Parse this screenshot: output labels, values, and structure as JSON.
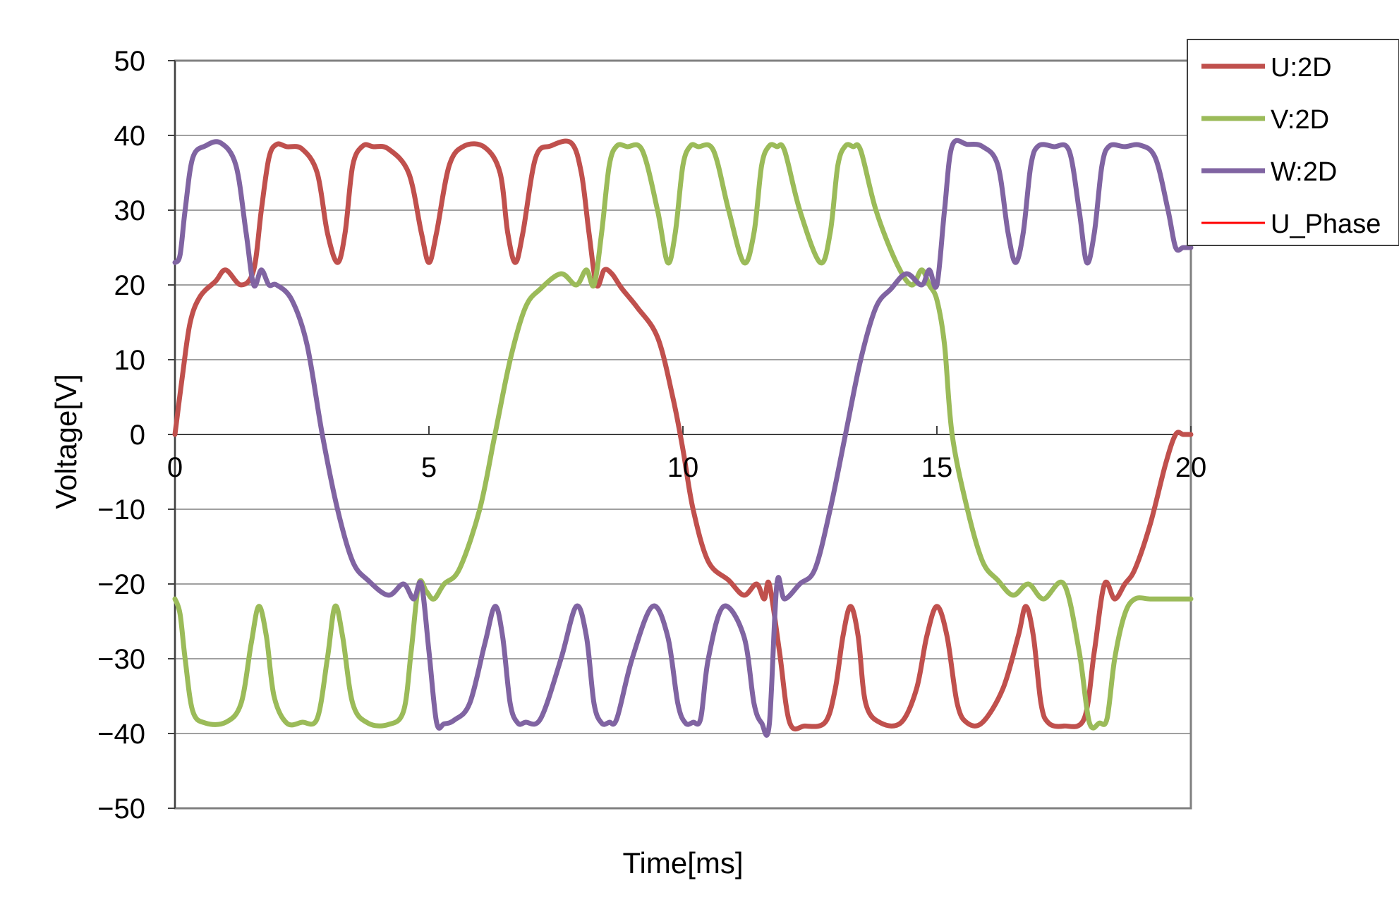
{
  "chart_data": {
    "type": "line",
    "title": "",
    "xlabel": "Time[ms]",
    "ylabel": "Voltage[V]",
    "xlim": [
      0,
      20
    ],
    "ylim": [
      -50,
      50
    ],
    "x_ticks": [
      0,
      5,
      10,
      15,
      20
    ],
    "x_tick_labels": [
      "0",
      "5",
      "10",
      "15",
      "20"
    ],
    "y_ticks": [
      50,
      40,
      30,
      20,
      10,
      0,
      -10,
      -20,
      -30,
      -40,
      -50
    ],
    "y_tick_labels": [
      "50",
      "40",
      "30",
      "20",
      "10",
      "0",
      "−10",
      "−20",
      "−30",
      "−40",
      "−50"
    ],
    "grid": "horizontal",
    "legend": "top-right",
    "series": [
      {
        "name": "U:2D",
        "color": "#C0504D",
        "x": [
          0,
          0.15,
          0.3,
          0.5,
          0.8,
          1.0,
          1.3,
          1.55,
          1.7,
          1.85,
          2.0,
          2.2,
          2.5,
          2.8,
          3.0,
          3.2,
          3.35,
          3.5,
          3.7,
          3.9,
          4.2,
          4.6,
          4.85,
          5.0,
          5.15,
          5.4,
          5.7,
          6.1,
          6.4,
          6.55,
          6.7,
          6.85,
          7.1,
          7.4,
          7.8,
          8.0,
          8.15,
          8.3,
          8.45,
          8.6,
          8.8,
          9.1,
          9.5,
          9.8,
          10.0,
          10.2,
          10.5,
          10.9,
          11.2,
          11.45,
          11.6,
          11.7,
          11.9,
          12.1,
          12.4,
          12.8,
          13.0,
          13.15,
          13.3,
          13.45,
          13.6,
          13.9,
          14.3,
          14.6,
          14.8,
          15.0,
          15.2,
          15.4,
          15.6,
          15.9,
          16.3,
          16.6,
          16.75,
          16.9,
          17.05,
          17.2,
          17.5,
          17.9,
          18.1,
          18.3,
          18.5,
          18.7,
          18.9,
          19.2,
          19.5,
          19.7,
          19.85,
          20.0
        ],
        "y": [
          0,
          8,
          15,
          18.5,
          20.5,
          22,
          20,
          22,
          30,
          37,
          38.8,
          38.5,
          38.2,
          35,
          27,
          23,
          27,
          36,
          38.6,
          38.5,
          38.2,
          35,
          27,
          23,
          27,
          36,
          38.6,
          38.4,
          35,
          27,
          23,
          27,
          37,
          38.6,
          39,
          35,
          27,
          20,
          22,
          21.5,
          19.5,
          17,
          13,
          5,
          -2,
          -10,
          -17,
          -19.5,
          -21.5,
          -20,
          -22,
          -20,
          -29,
          -38.5,
          -39,
          -38.5,
          -34,
          -27,
          -23,
          -27,
          -36,
          -38.6,
          -38.5,
          -34,
          -27,
          -23,
          -27,
          -36,
          -38.6,
          -38.5,
          -34,
          -27,
          -23,
          -27,
          -36,
          -38.6,
          -39,
          -38,
          -29,
          -20,
          -22,
          -20,
          -18,
          -12,
          -4,
          0,
          0,
          0
        ]
      },
      {
        "name": "V:2D",
        "color": "#9BBB59",
        "x": [
          0,
          0.1,
          0.2,
          0.35,
          0.6,
          1.0,
          1.3,
          1.5,
          1.65,
          1.8,
          1.95,
          2.2,
          2.5,
          2.8,
          3.0,
          3.15,
          3.3,
          3.5,
          3.8,
          4.2,
          4.5,
          4.65,
          4.8,
          4.95,
          5.1,
          5.3,
          5.6,
          6.0,
          6.3,
          6.6,
          6.9,
          7.2,
          7.6,
          7.9,
          8.1,
          8.25,
          8.4,
          8.55,
          8.7,
          8.9,
          9.2,
          9.5,
          9.7,
          9.85,
          10.0,
          10.15,
          10.3,
          10.6,
          10.9,
          11.2,
          11.4,
          11.55,
          11.7,
          11.85,
          12.0,
          12.3,
          12.7,
          12.9,
          13.05,
          13.2,
          13.35,
          13.5,
          13.8,
          14.2,
          14.5,
          14.7,
          14.85,
          15.0,
          15.15,
          15.3,
          15.6,
          15.9,
          16.2,
          16.5,
          16.8,
          17.1,
          17.5,
          17.8,
          18.0,
          18.2,
          18.35,
          18.5,
          18.7,
          18.9,
          19.2,
          19.5,
          19.7,
          19.85,
          20.0
        ],
        "y": [
          -22,
          -24,
          -30,
          -37,
          -38.6,
          -38.5,
          -36,
          -28,
          -23,
          -27,
          -35,
          -38.6,
          -38.5,
          -38,
          -30,
          -23,
          -27,
          -36,
          -38.6,
          -38.8,
          -37,
          -29,
          -20,
          -21,
          -22,
          -20,
          -18,
          -10,
          0,
          10,
          17,
          19.5,
          21.5,
          20,
          22,
          20,
          27,
          36,
          38.6,
          38.5,
          38,
          30,
          23,
          27,
          36,
          38.6,
          38.5,
          38,
          30,
          23,
          27,
          36,
          38.6,
          38.5,
          38,
          30,
          23,
          27,
          36,
          38.6,
          38.5,
          38,
          30,
          23,
          20,
          22,
          20,
          18,
          12,
          0,
          -10,
          -17,
          -19.5,
          -21.5,
          -20,
          -22,
          -20,
          -29,
          -38.5,
          -38.6,
          -38,
          -30,
          -24,
          -22,
          -22,
          -22,
          -22,
          -22,
          -22
        ]
      },
      {
        "name": "W:2D",
        "color": "#8064A2",
        "x": [
          0,
          0.1,
          0.2,
          0.35,
          0.6,
          0.9,
          1.2,
          1.4,
          1.55,
          1.7,
          1.85,
          2.0,
          2.3,
          2.6,
          2.9,
          3.2,
          3.5,
          3.8,
          4.2,
          4.5,
          4.7,
          4.85,
          5.0,
          5.15,
          5.3,
          5.5,
          5.8,
          6.1,
          6.3,
          6.45,
          6.6,
          6.75,
          6.9,
          7.2,
          7.6,
          7.9,
          8.1,
          8.25,
          8.4,
          8.55,
          8.7,
          9.0,
          9.4,
          9.7,
          9.9,
          10.05,
          10.2,
          10.35,
          10.5,
          10.8,
          11.2,
          11.4,
          11.55,
          11.7,
          11.85,
          12.0,
          12.3,
          12.6,
          12.9,
          13.2,
          13.5,
          13.8,
          14.1,
          14.4,
          14.7,
          14.85,
          15.0,
          15.15,
          15.3,
          15.6,
          15.9,
          16.2,
          16.4,
          16.55,
          16.7,
          16.85,
          17.0,
          17.3,
          17.6,
          17.8,
          17.95,
          18.1,
          18.25,
          18.4,
          18.7,
          19.0,
          19.3,
          19.55,
          19.7,
          19.85,
          20.0
        ],
        "y": [
          23,
          24,
          30,
          37,
          38.6,
          39,
          36,
          27,
          20,
          22,
          20,
          20,
          18,
          12,
          0,
          -10,
          -17,
          -19.5,
          -21.5,
          -20,
          -22,
          -20,
          -29,
          -38.5,
          -38.7,
          -38.2,
          -36,
          -28,
          -23,
          -27,
          -36,
          -38.6,
          -38.5,
          -38,
          -30,
          -23,
          -27,
          -36,
          -38.6,
          -38.5,
          -38,
          -30,
          -23,
          -27,
          -36,
          -38.6,
          -38.5,
          -38,
          -30,
          -23,
          -27,
          -36,
          -38.6,
          -38.8,
          -20,
          -22,
          -20,
          -18,
          -10,
          0,
          10,
          17,
          19.5,
          21.5,
          20,
          22,
          20,
          30,
          38.6,
          38.8,
          38.5,
          36,
          27,
          23,
          27,
          36,
          38.6,
          38.5,
          38,
          30,
          23,
          27,
          36,
          38.6,
          38.5,
          38.7,
          37,
          30,
          25,
          25,
          25
        ]
      },
      {
        "name": "U_Phase",
        "color": "#FF0000",
        "x": [],
        "y": []
      }
    ]
  }
}
